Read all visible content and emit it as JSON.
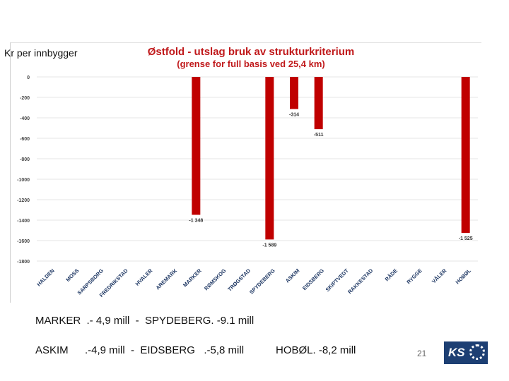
{
  "chart_data": {
    "type": "bar",
    "title": "Østfold - utslag bruk av strukturkriterium",
    "subtitle": "(grense for full basis ved 25,4 km)",
    "ylabel": "Kr per innbygger",
    "ylim": [
      -1800,
      0
    ],
    "yticks": [
      0,
      -200,
      -400,
      -600,
      -800,
      -1000,
      -1200,
      -1400,
      -1600,
      -1800
    ],
    "categories": [
      "HALDEN",
      "MOSS",
      "SARPSBORG",
      "FREDRIKSTAD",
      "HVALER",
      "AREMARK",
      "MARKER",
      "RØMSKOG",
      "TRØGSTAD",
      "SPYDEBERG",
      "ASKIM",
      "EIDSBERG",
      "SKIPTVEDT",
      "RAKKESTAD",
      "RÅDE",
      "RYGGE",
      "VÅLER",
      "HOBØL"
    ],
    "values": [
      0,
      0,
      0,
      0,
      0,
      0,
      -1348,
      0,
      0,
      -1589,
      -314,
      -511,
      0,
      0,
      0,
      0,
      0,
      -1525
    ],
    "data_labels": {
      "6": "-1 348",
      "9": "-1 589",
      "10": "-314",
      "11": "-511",
      "17": "-1 525"
    },
    "bar_color": "#c00000",
    "grid": true
  },
  "notes": {
    "line1": "MARKER  .- 4,9 mill  -  SPYDEBERG. -9.1 mill",
    "line2_a": "ASKIM",
    "line2_b": ".-4,9 mill  -  EIDSBERG   .-5,8 mill",
    "line2_c": "HOBØL. -8,2 mill"
  },
  "page_number": "21",
  "logo_text": "KS"
}
